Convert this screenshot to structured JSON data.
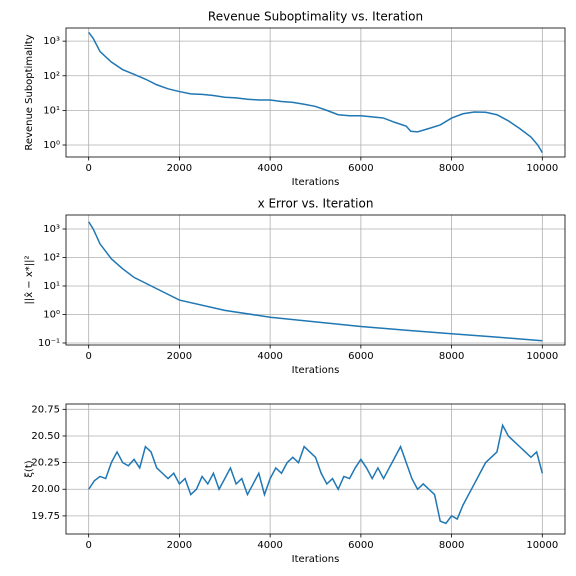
{
  "chart_data": [
    {
      "type": "line",
      "title": "Revenue Suboptimality vs. Iteration",
      "xlabel": "Iterations",
      "ylabel": "Revenue Suboptimality",
      "yscale": "log",
      "grid": true,
      "color": "#1f77b4",
      "xlim": [
        -500,
        10500
      ],
      "xticks": [
        0,
        2000,
        4000,
        6000,
        8000,
        10000
      ],
      "ylim": [
        0.45,
        2400
      ],
      "yticks": [
        {
          "value": 1,
          "label": "10⁰"
        },
        {
          "value": 10,
          "label": "10¹"
        },
        {
          "value": 100,
          "label": "10²"
        },
        {
          "value": 1000,
          "label": "10³"
        }
      ],
      "x": [
        0,
        100,
        250,
        500,
        750,
        1000,
        1250,
        1500,
        1750,
        2000,
        2250,
        2500,
        2750,
        3000,
        3250,
        3500,
        3750,
        4000,
        4250,
        4500,
        4750,
        5000,
        5250,
        5500,
        5750,
        6000,
        6250,
        6500,
        6750,
        7000,
        7100,
        7250,
        7500,
        7750,
        8000,
        8250,
        8500,
        8750,
        9000,
        9250,
        9500,
        9750,
        9900,
        10000
      ],
      "values": [
        1800,
        1200,
        500,
        250,
        150,
        110,
        80,
        55,
        42,
        35,
        30,
        29,
        27,
        24,
        23,
        21,
        20,
        20,
        18,
        17,
        15,
        13,
        10,
        7.5,
        7,
        7,
        6.5,
        6,
        4.5,
        3.5,
        2.5,
        2.4,
        3,
        3.8,
        6,
        8,
        9,
        8.8,
        7.5,
        5,
        3,
        1.7,
        1,
        0.6
      ]
    },
    {
      "type": "line",
      "title": "x Error vs. Iteration",
      "xlabel": "Iterations",
      "ylabel": "||x̂ − x*||²",
      "yscale": "log",
      "grid": true,
      "color": "#1f77b4",
      "xlim": [
        -500,
        10500
      ],
      "xticks": [
        0,
        2000,
        4000,
        6000,
        8000,
        10000
      ],
      "ylim": [
        0.085,
        3100
      ],
      "yticks": [
        {
          "value": 0.1,
          "label": "10⁻¹"
        },
        {
          "value": 1,
          "label": "10⁰"
        },
        {
          "value": 10,
          "label": "10¹"
        },
        {
          "value": 100,
          "label": "10²"
        },
        {
          "value": 1000,
          "label": "10³"
        }
      ],
      "x": [
        0,
        100,
        250,
        500,
        750,
        1000,
        1500,
        2000,
        3000,
        4000,
        5000,
        6000,
        7000,
        8000,
        9000,
        10000
      ],
      "values": [
        1800,
        1000,
        300,
        90,
        40,
        20,
        8,
        3.2,
        1.4,
        0.8,
        0.55,
        0.38,
        0.28,
        0.21,
        0.16,
        0.12
      ]
    },
    {
      "type": "line",
      "xlabel": "Iterations",
      "ylabel": "ξ(t)",
      "grid": true,
      "color": "#1f77b4",
      "xlim": [
        -500,
        10500
      ],
      "xticks": [
        0,
        2000,
        4000,
        6000,
        8000,
        10000
      ],
      "ylim": [
        19.58,
        20.8
      ],
      "yticks": [
        19.75,
        {
          "value": 20,
          "label": "20.00"
        },
        20.25,
        {
          "value": 20.5,
          "label": "20.50"
        },
        20.75
      ],
      "x": [
        0,
        125,
        250,
        375,
        500,
        625,
        750,
        875,
        1000,
        1125,
        1250,
        1375,
        1500,
        1625,
        1750,
        1875,
        2000,
        2125,
        2250,
        2375,
        2500,
        2625,
        2750,
        2875,
        3000,
        3125,
        3250,
        3375,
        3500,
        3625,
        3750,
        3875,
        4000,
        4125,
        4250,
        4375,
        4500,
        4625,
        4750,
        4875,
        5000,
        5125,
        5250,
        5375,
        5500,
        5625,
        5750,
        5875,
        6000,
        6125,
        6250,
        6375,
        6500,
        6625,
        6750,
        6875,
        7000,
        7125,
        7250,
        7375,
        7500,
        7625,
        7750,
        7875,
        8000,
        8125,
        8250,
        8375,
        8500,
        8625,
        8750,
        8875,
        9000,
        9125,
        9250,
        9375,
        9500,
        9625,
        9750,
        9875,
        10000
      ],
      "values": [
        20.0,
        20.08,
        20.12,
        20.1,
        20.25,
        20.35,
        20.25,
        20.22,
        20.28,
        20.2,
        20.4,
        20.35,
        20.2,
        20.15,
        20.1,
        20.15,
        20.05,
        20.1,
        19.95,
        20.0,
        20.12,
        20.05,
        20.15,
        20.0,
        20.1,
        20.2,
        20.05,
        20.1,
        19.95,
        20.05,
        20.15,
        19.95,
        20.1,
        20.2,
        20.15,
        20.25,
        20.3,
        20.25,
        20.4,
        20.35,
        20.3,
        20.15,
        20.05,
        20.1,
        20.0,
        20.12,
        20.1,
        20.2,
        20.28,
        20.2,
        20.1,
        20.2,
        20.1,
        20.2,
        20.3,
        20.4,
        20.25,
        20.1,
        20.0,
        20.05,
        20.0,
        19.95,
        19.7,
        19.68,
        19.75,
        19.72,
        19.85,
        19.95,
        20.05,
        20.15,
        20.25,
        20.3,
        20.35,
        20.6,
        20.5,
        20.45,
        20.4,
        20.35,
        20.3,
        20.35,
        20.15
      ]
    }
  ]
}
